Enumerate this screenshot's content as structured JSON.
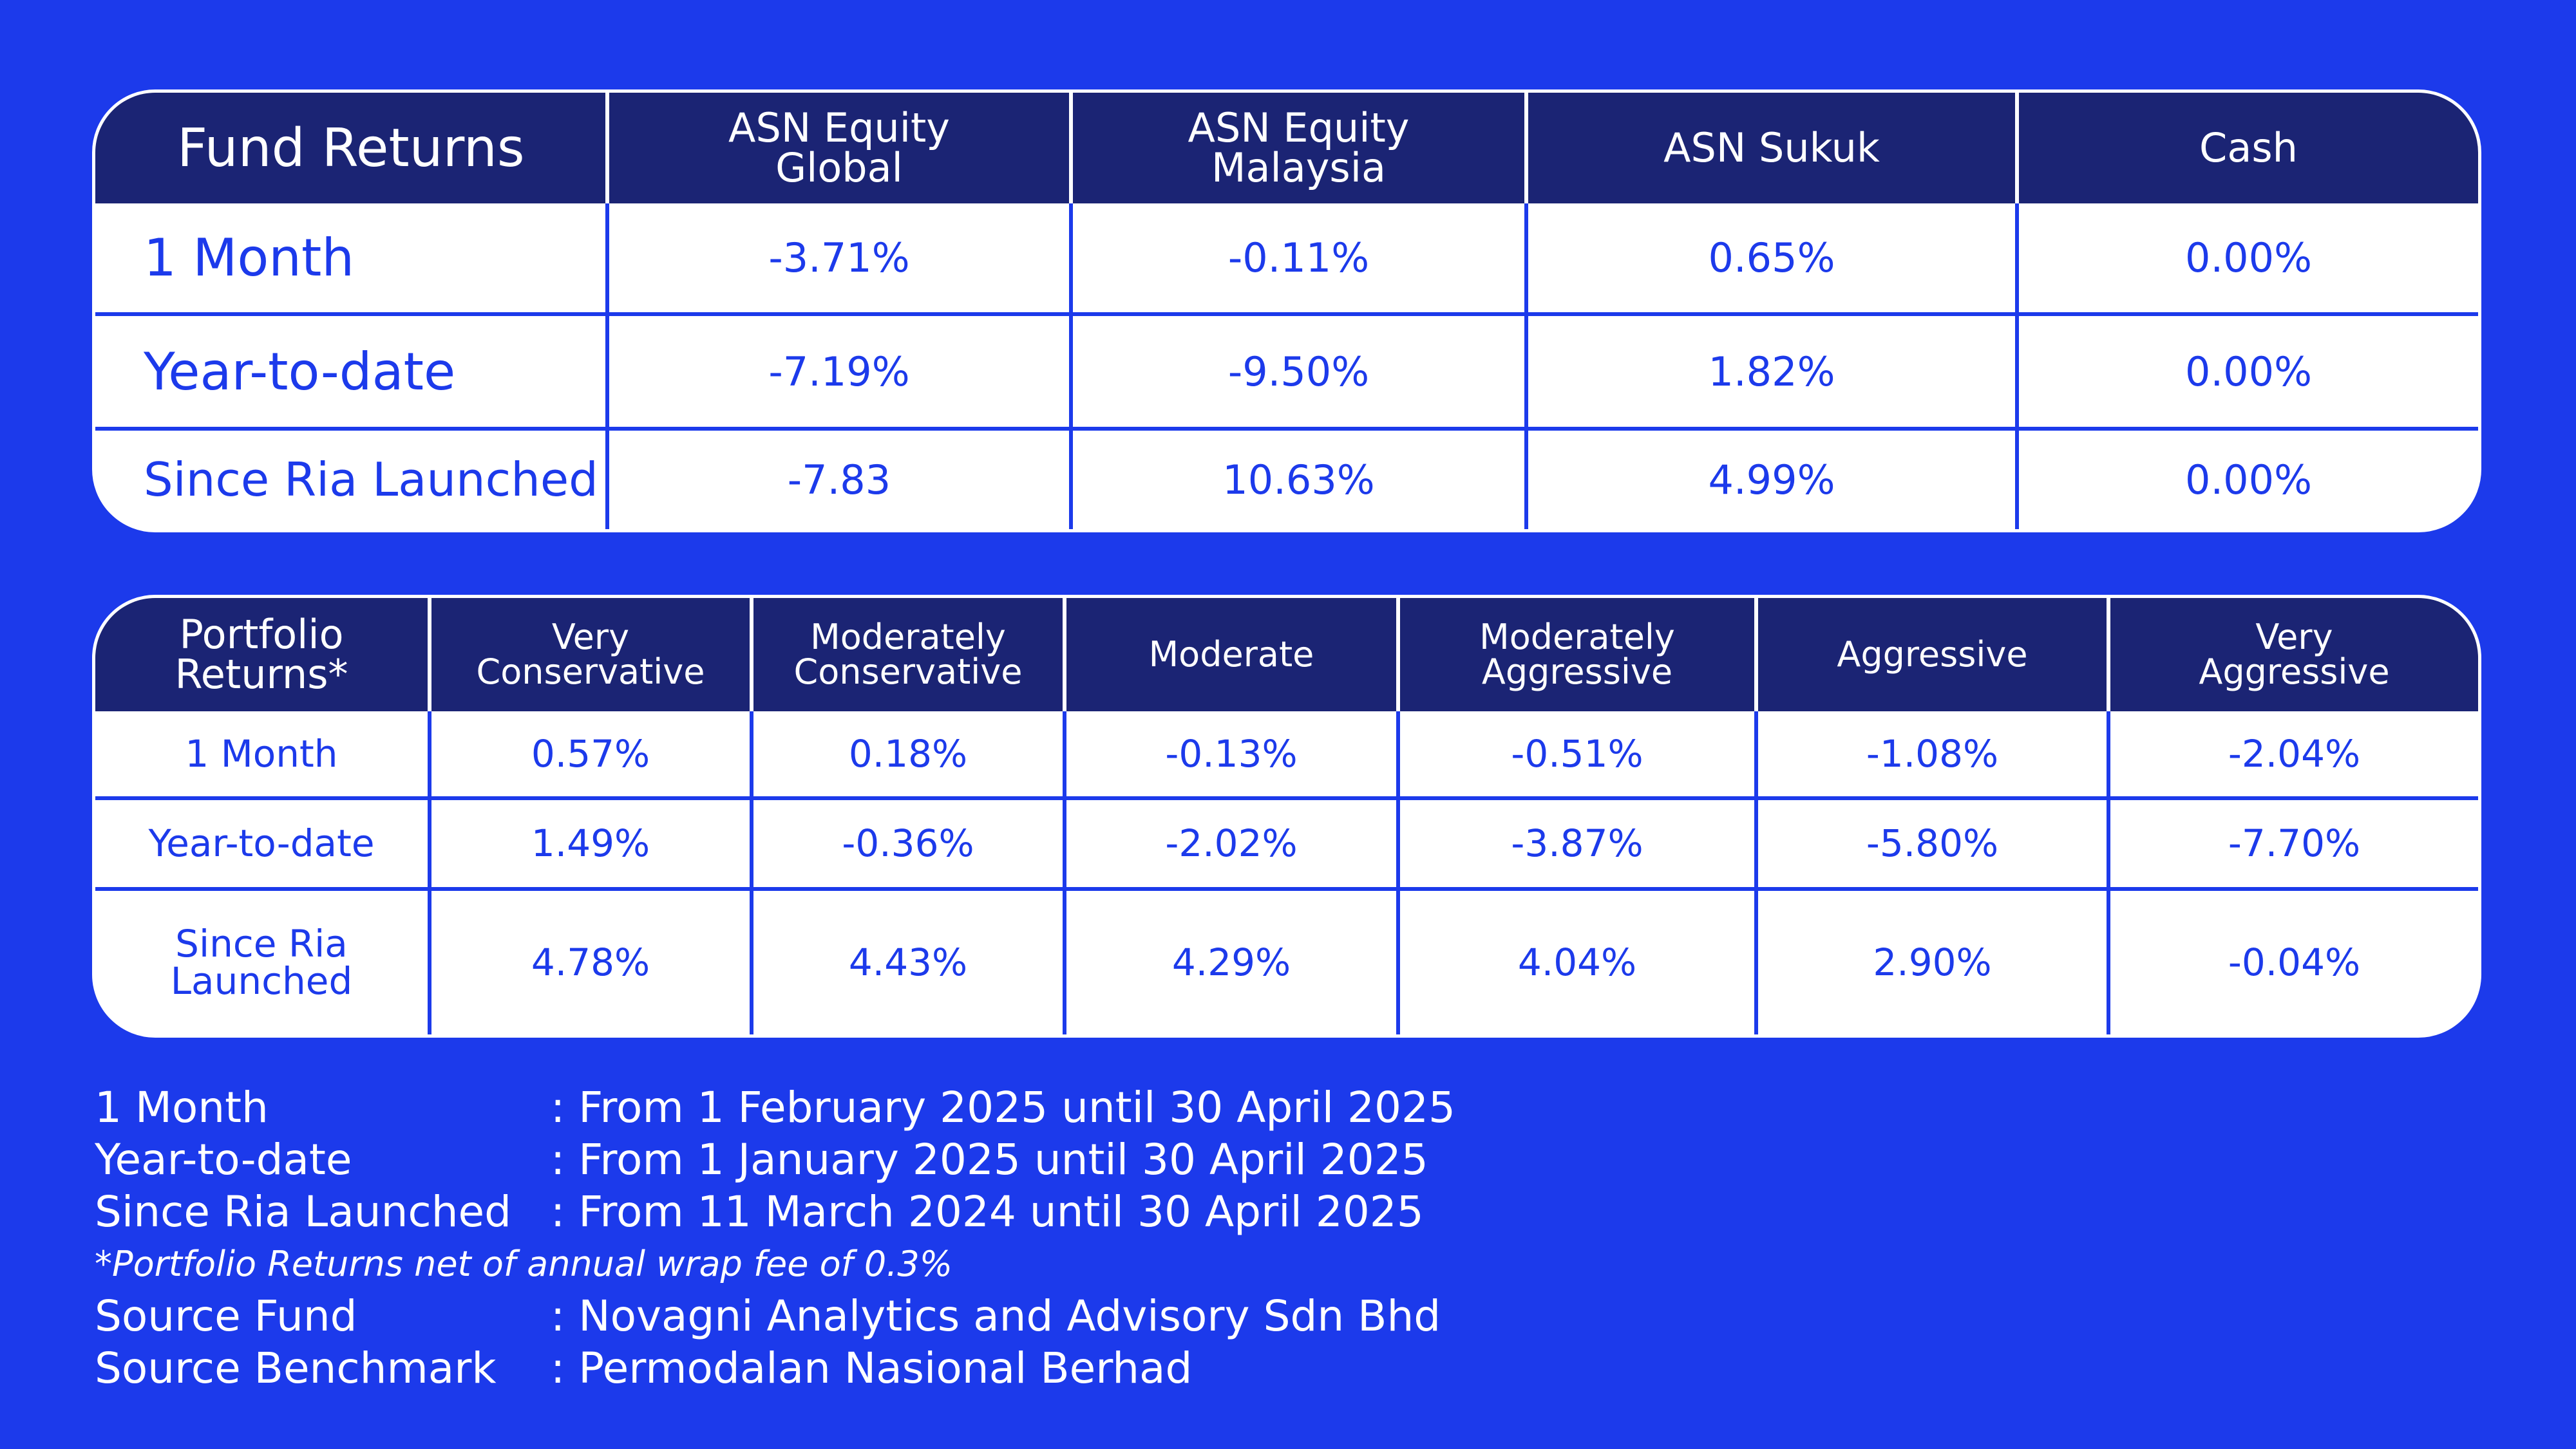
{
  "fund_returns": {
    "title": "Fund Returns",
    "columns": [
      "ASN Equity\nGlobal",
      "ASN Equity\nMalaysia",
      "ASN Sukuk",
      "Cash"
    ],
    "rows": [
      {
        "label": "1 Month",
        "values": [
          "-3.71%",
          "-0.11%",
          "0.65%",
          "0.00%"
        ]
      },
      {
        "label": "Year-to-date",
        "values": [
          "-7.19%",
          "-9.50%",
          "1.82%",
          "0.00%"
        ]
      },
      {
        "label": "Since Ria Launched",
        "values": [
          "-7.83",
          "10.63%",
          "4.99%",
          "0.00%"
        ]
      }
    ]
  },
  "portfolio_returns": {
    "title": "Portfolio\nReturns*",
    "columns": [
      "Very\nConservative",
      "Moderately\nConservative",
      "Moderate",
      "Moderately\nAggressive",
      "Aggressive",
      "Very\nAggressive"
    ],
    "rows": [
      {
        "label": "1 Month",
        "values": [
          "0.57%",
          "0.18%",
          "-0.13%",
          "-0.51%",
          "-1.08%",
          "-2.04%"
        ]
      },
      {
        "label": "Year-to-date",
        "values": [
          "1.49%",
          "-0.36%",
          "-2.02%",
          "-3.87%",
          "-5.80%",
          "-7.70%"
        ]
      },
      {
        "label": "Since Ria\nLaunched",
        "values": [
          "4.78%",
          "4.43%",
          "4.29%",
          "4.04%",
          "2.90%",
          "-0.04%"
        ]
      }
    ]
  },
  "notes": {
    "periods": [
      {
        "key": "1 Month",
        "value": ": From 1 February 2025 until 30 April 2025"
      },
      {
        "key": "Year-to-date",
        "value": ": From 1 January 2025 until 30 April 2025"
      },
      {
        "key": "Since Ria Launched",
        "value": ": From 11 March 2024 until 30 April 2025"
      }
    ],
    "footnote": "*Portfolio Returns net of annual wrap fee of 0.3%",
    "sources": [
      {
        "key": "Source Fund",
        "value": ": Novagni Analytics and Advisory Sdn Bhd"
      },
      {
        "key": "Source Benchmark",
        "value": ": Permodalan Nasional Berhad"
      }
    ]
  }
}
